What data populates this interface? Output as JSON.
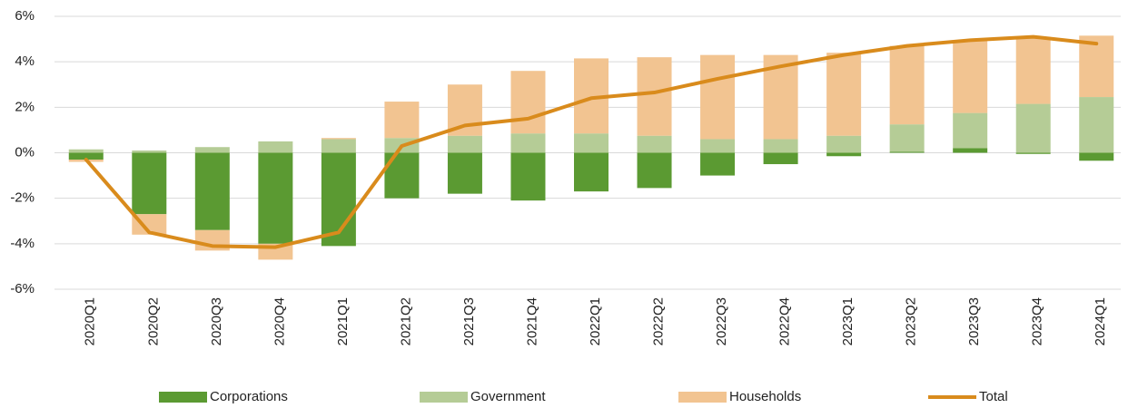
{
  "chart_data": {
    "type": "bar",
    "stacked": true,
    "categories": [
      "2020Q1",
      "2020Q2",
      "2020Q3",
      "2020Q4",
      "2021Q1",
      "2021Q2",
      "2021Q3",
      "2021Q4",
      "2022Q1",
      "2022Q2",
      "2022Q3",
      "2022Q4",
      "2023Q1",
      "2023Q2",
      "2023Q3",
      "2023Q4",
      "2024Q1"
    ],
    "series": [
      {
        "name": "Corporations",
        "type": "bar",
        "color": "#5b9a32",
        "values": [
          -0.3,
          -2.7,
          -3.4,
          -4.0,
          -4.1,
          -2.0,
          -1.8,
          -2.1,
          -1.7,
          -1.55,
          -1.0,
          -0.5,
          -0.15,
          0.05,
          0.2,
          -0.05,
          -0.35
        ]
      },
      {
        "name": "Government",
        "type": "bar",
        "color": "#b5cc96",
        "values": [
          0.15,
          0.1,
          0.25,
          0.5,
          0.6,
          0.65,
          0.75,
          0.85,
          0.85,
          0.75,
          0.6,
          0.6,
          0.75,
          1.2,
          1.55,
          2.15,
          2.45
        ]
      },
      {
        "name": "Households",
        "type": "bar",
        "color": "#f2c491",
        "values": [
          -0.1,
          -0.9,
          -0.9,
          -0.7,
          0.05,
          1.6,
          2.25,
          2.75,
          3.3,
          3.45,
          3.7,
          3.7,
          3.65,
          3.45,
          3.2,
          2.95,
          2.7
        ]
      },
      {
        "name": "Total",
        "type": "line",
        "color": "#d98b1c",
        "values": [
          -0.3,
          -3.5,
          -4.1,
          -4.15,
          -3.5,
          0.3,
          1.2,
          1.5,
          2.4,
          2.65,
          3.25,
          3.8,
          4.3,
          4.7,
          4.95,
          5.1,
          4.8
        ]
      }
    ],
    "ylim": [
      -6,
      6
    ],
    "yticks": [
      {
        "value": -6,
        "label": "-6%"
      },
      {
        "value": -4,
        "label": "-4%"
      },
      {
        "value": -2,
        "label": "-2%"
      },
      {
        "value": 0,
        "label": "0%"
      },
      {
        "value": 2,
        "label": "2%"
      },
      {
        "value": 4,
        "label": "4%"
      },
      {
        "value": 6,
        "label": "6%"
      }
    ],
    "grid": true,
    "legend": "bottom"
  }
}
